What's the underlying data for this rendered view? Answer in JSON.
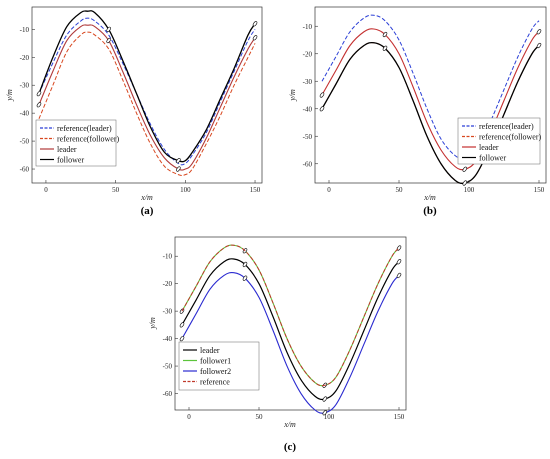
{
  "chart_data": [
    {
      "type": "line",
      "panel_label": "(a)",
      "xlabel": "x/m",
      "ylabel": "y/m",
      "xlim": [
        -10,
        155
      ],
      "ylim": [
        -65,
        -2
      ],
      "xticks": [
        "0",
        "50",
        "100",
        "150"
      ],
      "yticks": [
        "-10",
        "-20",
        "-30",
        "-40",
        "-50",
        "-60"
      ],
      "xtick_values": [
        0,
        50,
        100,
        150
      ],
      "ytick_values": [
        -10,
        -20,
        -30,
        -40,
        -50,
        -60
      ],
      "legend_position": "bottom-left",
      "legend": [
        "reference(leader)",
        "reference(follower)",
        "leader",
        "follower"
      ],
      "series": [
        {
          "name": "reference(leader)",
          "color": "#2b3fd6",
          "dash": "4,2",
          "width": 1.0,
          "x": [
            -5,
            5,
            15,
            25,
            30,
            35,
            45,
            55,
            65,
            75,
            85,
            95,
            100,
            105,
            115,
            125,
            135,
            145,
            150
          ],
          "y": [
            -33,
            -22,
            -12,
            -7,
            -6,
            -7,
            -12,
            -22,
            -33,
            -44,
            -53,
            -58,
            -58,
            -55,
            -47,
            -36,
            -25,
            -14,
            -10
          ]
        },
        {
          "name": "reference(follower)",
          "color": "#d8471f",
          "dash": "4,2",
          "width": 1.0,
          "x": [
            -5,
            5,
            15,
            25,
            30,
            35,
            45,
            55,
            65,
            75,
            85,
            95,
            100,
            105,
            115,
            125,
            135,
            145,
            150
          ],
          "y": [
            -42,
            -30,
            -18,
            -12,
            -11,
            -12,
            -17,
            -28,
            -40,
            -51,
            -59,
            -62,
            -62,
            -60,
            -51,
            -41,
            -30,
            -20,
            -15
          ]
        },
        {
          "name": "leader",
          "color": "#b03a3a",
          "dash": "",
          "width": 1.1,
          "x": [
            -5,
            5,
            15,
            25,
            30,
            35,
            45,
            55,
            65,
            75,
            85,
            95,
            100,
            105,
            115,
            125,
            135,
            145,
            150
          ],
          "y": [
            -37,
            -25,
            -14,
            -9,
            -8.5,
            -9,
            -14,
            -25,
            -37,
            -48,
            -56,
            -60,
            -60,
            -58,
            -49,
            -38,
            -27,
            -17,
            -13
          ]
        },
        {
          "name": "follower",
          "color": "#000000",
          "dash": "",
          "width": 1.3,
          "x": [
            -5,
            5,
            15,
            25,
            30,
            35,
            45,
            55,
            65,
            75,
            85,
            95,
            100,
            105,
            115,
            125,
            135,
            145,
            150
          ],
          "y": [
            -33,
            -20,
            -9,
            -4,
            -3.5,
            -4,
            -10,
            -21,
            -33,
            -45,
            -54,
            -57,
            -57,
            -54,
            -46,
            -35,
            -24,
            -12,
            -8
          ]
        }
      ]
    },
    {
      "type": "line",
      "panel_label": "(b)",
      "xlabel": "x/m",
      "ylabel": "y/m",
      "xlim": [
        -10,
        155
      ],
      "ylim": [
        -67,
        -3
      ],
      "xticks": [
        "0",
        "50",
        "100",
        "150"
      ],
      "yticks": [
        "-10",
        "-20",
        "-30",
        "-40",
        "-50",
        "-60"
      ],
      "xtick_values": [
        0,
        50,
        100,
        150
      ],
      "ytick_values": [
        -10,
        -20,
        -30,
        -40,
        -50,
        -60
      ],
      "legend_position": "bottom-right",
      "legend": [
        "reference(leader)",
        "reference(follower)",
        "leader",
        "follower"
      ],
      "series": [
        {
          "name": "reference(leader)",
          "color": "#2b3fd6",
          "dash": "4,2",
          "width": 1.0,
          "x": [
            -5,
            5,
            15,
            25,
            32,
            40,
            50,
            60,
            70,
            80,
            90,
            97,
            105,
            115,
            125,
            135,
            145,
            150
          ],
          "y": [
            -30,
            -21,
            -12,
            -7,
            -6,
            -8,
            -15,
            -27,
            -40,
            -51,
            -57,
            -58,
            -55,
            -45,
            -33,
            -21,
            -11,
            -8
          ]
        },
        {
          "name": "reference(follower)",
          "color": "#d8471f",
          "dash": "4,2",
          "width": 1.0,
          "x": [
            -5,
            5,
            15,
            25,
            32,
            40,
            50,
            60,
            70,
            80,
            90,
            97,
            105,
            115,
            125,
            135,
            145,
            150
          ],
          "y": [
            -40,
            -31,
            -22,
            -17,
            -16,
            -18,
            -25,
            -37,
            -50,
            -60,
            -66,
            -67,
            -64,
            -54,
            -42,
            -30,
            -20,
            -17
          ]
        },
        {
          "name": "leader",
          "color": "#c43030",
          "dash": "",
          "width": 1.1,
          "x": [
            -5,
            5,
            15,
            25,
            32,
            40,
            50,
            60,
            70,
            80,
            90,
            97,
            105,
            115,
            125,
            135,
            145,
            150
          ],
          "y": [
            -35,
            -26,
            -17,
            -12,
            -11,
            -13,
            -20,
            -32,
            -45,
            -55,
            -61,
            -62,
            -59,
            -49,
            -37,
            -25,
            -15,
            -12
          ]
        },
        {
          "name": "follower",
          "color": "#000000",
          "dash": "",
          "width": 1.3,
          "x": [
            -5,
            5,
            15,
            25,
            32,
            40,
            50,
            60,
            70,
            80,
            90,
            97,
            105,
            115,
            125,
            135,
            145,
            150
          ],
          "y": [
            -40,
            -31,
            -22,
            -17,
            -16,
            -18,
            -25,
            -37,
            -50,
            -60,
            -66,
            -67,
            -64,
            -54,
            -42,
            -30,
            -20,
            -17
          ]
        }
      ]
    },
    {
      "type": "line",
      "panel_label": "(c)",
      "xlabel": "x/m",
      "ylabel": "y/m",
      "xlim": [
        -10,
        155
      ],
      "ylim": [
        -66,
        -3
      ],
      "xticks": [
        "0",
        "50",
        "100",
        "150"
      ],
      "yticks": [
        "-10",
        "-20",
        "-30",
        "-40",
        "-50",
        "-60"
      ],
      "xtick_values": [
        0,
        50,
        100,
        150
      ],
      "ytick_values": [
        -10,
        -20,
        -30,
        -40,
        -50,
        -60
      ],
      "legend_position": "bottom-left",
      "legend": [
        "leader",
        "follower1",
        "follower2",
        "reference"
      ],
      "series": [
        {
          "name": "leader",
          "color": "#000000",
          "dash": "",
          "width": 1.2,
          "x": [
            -5,
            5,
            15,
            25,
            32,
            40,
            50,
            60,
            70,
            80,
            90,
            97,
            105,
            115,
            125,
            135,
            145,
            150
          ],
          "y": [
            -35,
            -26,
            -17,
            -12,
            -11,
            -13,
            -20,
            -32,
            -45,
            -55,
            -61,
            -62,
            -59,
            -49,
            -37,
            -25,
            -15,
            -12
          ]
        },
        {
          "name": "follower1",
          "color": "#5cc43a",
          "dash": "",
          "width": 1.1,
          "x": [
            -5,
            5,
            15,
            25,
            32,
            40,
            50,
            60,
            70,
            80,
            90,
            97,
            105,
            115,
            125,
            135,
            145,
            150
          ],
          "y": [
            -30,
            -21,
            -12,
            -7,
            -6,
            -8,
            -15,
            -27,
            -40,
            -50,
            -56,
            -57,
            -54,
            -44,
            -32,
            -20,
            -10,
            -7
          ]
        },
        {
          "name": "follower2",
          "color": "#2a2ad0",
          "dash": "",
          "width": 1.1,
          "x": [
            -5,
            5,
            15,
            25,
            32,
            40,
            50,
            60,
            70,
            80,
            90,
            97,
            105,
            115,
            125,
            135,
            145,
            150
          ],
          "y": [
            -40,
            -31,
            -22,
            -17,
            -16,
            -18,
            -25,
            -37,
            -50,
            -60,
            -66,
            -67,
            -64,
            -54,
            -42,
            -30,
            -20,
            -17
          ]
        },
        {
          "name": "reference",
          "color": "#c0392b",
          "dash": "4,2",
          "width": 1.0,
          "x": [
            -5,
            5,
            15,
            25,
            32,
            40,
            50,
            60,
            70,
            80,
            90,
            97,
            105,
            115,
            125,
            135,
            145,
            150
          ],
          "y": [
            -30,
            -21,
            -12,
            -7,
            -6,
            -8,
            -15,
            -27,
            -40,
            -50,
            -56,
            -57,
            -54,
            -44,
            -32,
            -20,
            -10,
            -7
          ]
        }
      ]
    }
  ]
}
